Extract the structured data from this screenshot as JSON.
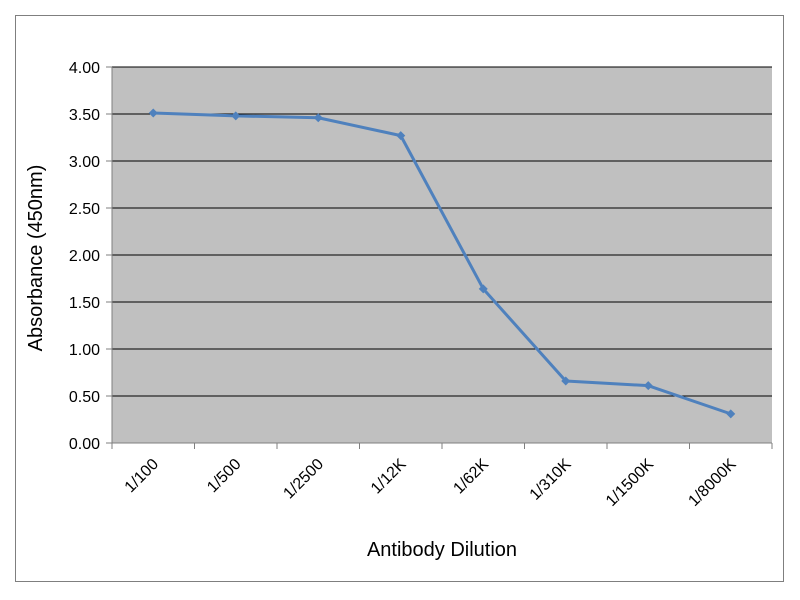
{
  "chart_data": {
    "type": "line",
    "title": "",
    "xlabel": "Antibody Dilution",
    "ylabel": "Absorbance (450nm)",
    "categories": [
      "1/100",
      "1/500",
      "1/2500",
      "1/12K",
      "1/62K",
      "1/310K",
      "1/1500K",
      "1/8000K"
    ],
    "series": [
      {
        "values": [
          3.51,
          3.48,
          3.46,
          3.27,
          1.64,
          0.66,
          0.61,
          0.31
        ]
      }
    ],
    "ylim": [
      0,
      4
    ],
    "yticks": [
      "0.00",
      "0.50",
      "1.00",
      "1.50",
      "2.00",
      "2.50",
      "3.00",
      "3.50",
      "4.00"
    ],
    "grid": "horizontal",
    "legend": "none",
    "colors": {
      "plot_background": "#c0c0c0",
      "gridline": "#000000",
      "series_line": "#4f81bd",
      "frame_border": "#7f7f7f"
    }
  }
}
